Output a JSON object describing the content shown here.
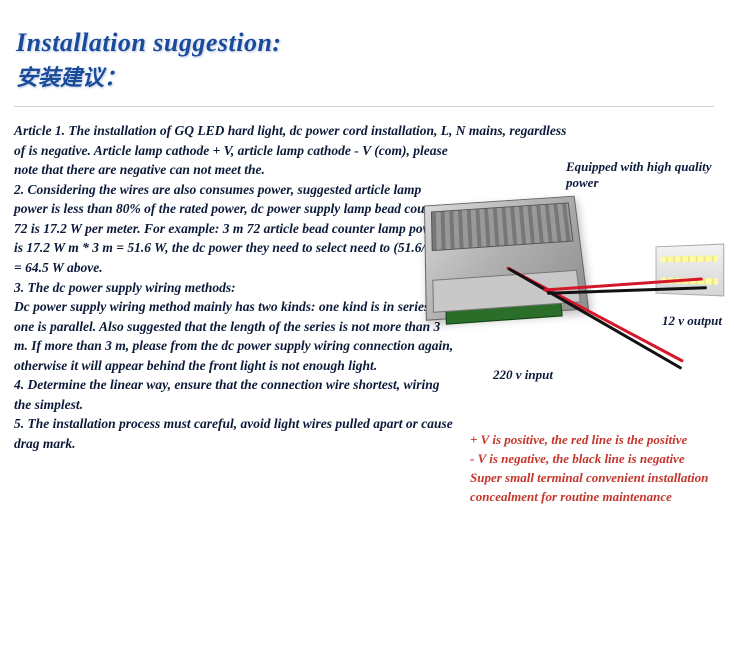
{
  "title": {
    "en": "Installation suggestion:",
    "cn": "安装建议："
  },
  "body": {
    "p1_wide": "Article 1. The installation of GQ LED hard light, dc power cord installation, L, N mains, regardless",
    "p1_cont": "of is negative. Article lamp cathode + V, article lamp cathode - V (com), please note that there are negative can not meet the.",
    "p2": "2. Considering the wires are also consumes power, suggested article lamp power is less than 80% of the rated power, dc power supply lamp bead counter 72  is 17.2 W per meter. For example: 3 m 72 article bead  counter lamp power is 17.2 W m * 3 m = 51.6 W, the dc power they need to select need to (51.6/0.8) = 64.5 W  above.",
    "p3a": "3. The dc power supply wiring methods:",
    "p3b": "Dc power supply wiring method mainly has two kinds: one kind is in series, one is parallel. Also suggested that the length of the series is not more than 3 m. If more than 3 m, please from the dc power supply wiring connection again, otherwise it will appear behind the front light is not enough light.",
    "p4": "4. Determine the linear way, ensure that the connection  wire shortest, wiring the simplest.",
    "p5": "5. The installation process must careful, avoid light wires pulled apart or cause drag mark."
  },
  "image": {
    "cap_top": "Equipped with high quality power",
    "cap_right": "12 v output",
    "cap_bottom": "220 v input"
  },
  "notes": {
    "l1": "+ V is positive, the red line is the  positive",
    "l2": "- V is negative, the black line is negative",
    "l3": "Super small terminal convenient  installation concealment for routine maintenance"
  },
  "colors": {
    "title": "#1a4b9a",
    "body": "#0c1a3a",
    "note": "#c4352a",
    "wire_red": "#d4172a",
    "wire_black": "#111111"
  }
}
